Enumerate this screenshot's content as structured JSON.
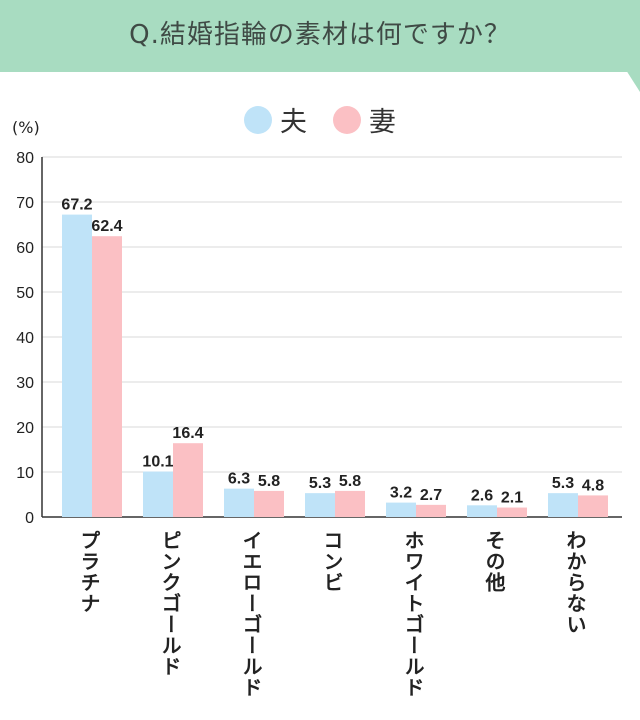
{
  "header": {
    "title": "Q.結婚指輪の素材は何ですか？"
  },
  "colors": {
    "banner": "#a8dcc1",
    "husband": "#bfe3f8",
    "wife": "#fbc0c4",
    "grid": "#d9d9d9",
    "axis": "#333333"
  },
  "chart_data": {
    "type": "bar",
    "title": "Q.結婚指輪の素材は何ですか？",
    "ylabel": "(%)",
    "xlabel": "",
    "ylim": [
      0,
      80
    ],
    "yticks": [
      0,
      10,
      20,
      30,
      40,
      50,
      60,
      70,
      80
    ],
    "grid": true,
    "legend_position": "top-center",
    "categories": [
      "プラチナ",
      "ピンクゴールド",
      "イエローゴールド",
      "コンビ",
      "ホワイトゴールド",
      "その他",
      "わからない"
    ],
    "series": [
      {
        "name": "夫",
        "color": "#bfe3f8",
        "values": [
          67.2,
          10.1,
          6.3,
          5.3,
          3.2,
          2.6,
          5.3
        ]
      },
      {
        "name": "妻",
        "color": "#fbc0c4",
        "values": [
          62.4,
          16.4,
          5.8,
          5.8,
          2.7,
          2.1,
          4.8
        ]
      }
    ]
  }
}
